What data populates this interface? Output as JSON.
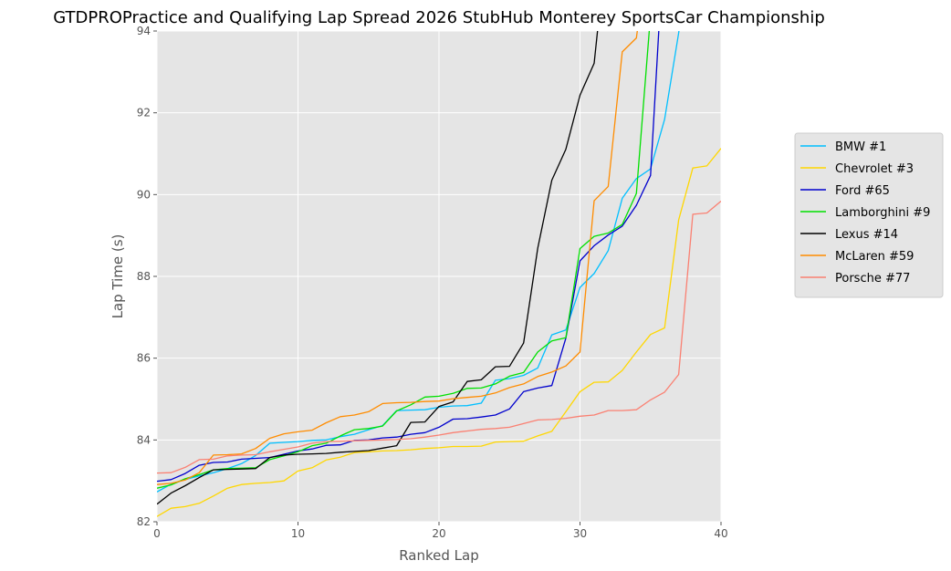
{
  "chart_data": {
    "type": "line",
    "title": "GTDPROPractice and Qualifying Lap Spread 2026 StubHub Monterey SportsCar Championship",
    "xlabel": "Ranked Lap",
    "ylabel": "Lap Time (s)",
    "xlim": [
      0,
      40
    ],
    "ylim": [
      82,
      94
    ],
    "xticks": [
      0,
      10,
      20,
      30,
      40
    ],
    "yticks": [
      82,
      84,
      86,
      88,
      90,
      92,
      94
    ],
    "grid": true,
    "legend_position": "right",
    "series": [
      {
        "name": "BMW #1",
        "color": "#00bfff",
        "x": [
          0,
          1,
          2,
          3,
          4,
          5,
          6,
          7,
          8,
          9,
          10,
          11,
          12,
          13,
          14,
          15,
          16,
          17,
          18,
          19,
          20,
          21,
          22,
          23,
          24,
          25,
          26,
          27,
          28,
          29,
          30,
          31,
          32,
          33,
          34,
          35,
          36,
          37,
          38
        ],
        "y": [
          82.73,
          82.92,
          83.03,
          83.12,
          83.2,
          83.3,
          83.42,
          83.62,
          83.92,
          83.94,
          83.96,
          83.99,
          84.0,
          84.08,
          84.14,
          84.25,
          84.35,
          84.72,
          84.73,
          84.74,
          84.8,
          84.83,
          84.84,
          84.9,
          85.46,
          85.5,
          85.58,
          85.76,
          86.57,
          86.69,
          87.73,
          88.07,
          88.63,
          89.91,
          90.39,
          90.63,
          91.84,
          93.95,
          96.5
        ]
      },
      {
        "name": "Chevrolet #3",
        "color": "#ffd700",
        "x": [
          0,
          1,
          2,
          3,
          4,
          5,
          6,
          7,
          8,
          9,
          10,
          11,
          12,
          13,
          14,
          15,
          16,
          17,
          18,
          19,
          20,
          21,
          22,
          23,
          24,
          25,
          26,
          27,
          28,
          29,
          30,
          31,
          32,
          33,
          34,
          35,
          36,
          37,
          38,
          39,
          40
        ],
        "y": [
          82.13,
          82.33,
          82.37,
          82.45,
          82.63,
          82.82,
          82.91,
          82.94,
          82.96,
          83.0,
          83.24,
          83.32,
          83.51,
          83.58,
          83.69,
          83.71,
          83.73,
          83.74,
          83.76,
          83.79,
          83.81,
          83.84,
          83.84,
          83.85,
          83.95,
          83.96,
          83.97,
          84.1,
          84.21,
          84.69,
          85.18,
          85.41,
          85.42,
          85.7,
          86.15,
          86.58,
          86.74,
          89.38,
          90.65,
          90.7,
          91.13
        ]
      },
      {
        "name": "Ford #65",
        "color": "#0000cd",
        "x": [
          0,
          1,
          2,
          3,
          4,
          5,
          6,
          7,
          8,
          9,
          10,
          11,
          12,
          13,
          14,
          15,
          16,
          17,
          18,
          19,
          20,
          21,
          22,
          23,
          24,
          25,
          26,
          27,
          28,
          29,
          30,
          31,
          32,
          33,
          34,
          35,
          36
        ],
        "y": [
          82.99,
          83.03,
          83.18,
          83.38,
          83.45,
          83.46,
          83.53,
          83.55,
          83.57,
          83.65,
          83.73,
          83.78,
          83.87,
          83.88,
          83.99,
          84.0,
          84.05,
          84.07,
          84.14,
          84.18,
          84.31,
          84.51,
          84.52,
          84.56,
          84.61,
          84.76,
          85.18,
          85.27,
          85.33,
          86.49,
          88.38,
          88.75,
          89.01,
          89.23,
          89.74,
          90.47,
          96.5
        ]
      },
      {
        "name": "Lamborghini #9",
        "color": "#00e000",
        "x": [
          0,
          1,
          2,
          3,
          4,
          5,
          6,
          7,
          8,
          9,
          10,
          11,
          12,
          13,
          14,
          15,
          16,
          17,
          18,
          19,
          20,
          21,
          22,
          23,
          24,
          25,
          26,
          27,
          28,
          29,
          30,
          31,
          32,
          33,
          34,
          35,
          36
        ],
        "y": [
          82.82,
          82.9,
          83.05,
          83.15,
          83.27,
          83.3,
          83.31,
          83.32,
          83.52,
          83.61,
          83.71,
          83.86,
          83.92,
          84.1,
          84.25,
          84.28,
          84.34,
          84.71,
          84.86,
          85.05,
          85.07,
          85.14,
          85.26,
          85.27,
          85.37,
          85.56,
          85.65,
          86.15,
          86.42,
          86.5,
          88.68,
          88.98,
          89.06,
          89.27,
          90.03,
          94.4,
          96.5
        ]
      },
      {
        "name": "Lexus #14",
        "color": "#000000",
        "x": [
          0,
          1,
          2,
          3,
          4,
          5,
          6,
          7,
          8,
          9,
          10,
          11,
          12,
          13,
          14,
          15,
          16,
          17,
          18,
          19,
          20,
          21,
          22,
          23,
          24,
          25,
          26,
          27,
          28,
          29,
          30,
          31,
          32
        ],
        "y": [
          82.43,
          82.7,
          82.88,
          83.08,
          83.27,
          83.28,
          83.29,
          83.3,
          83.57,
          83.63,
          83.65,
          83.66,
          83.67,
          83.7,
          83.72,
          83.74,
          83.8,
          83.86,
          84.43,
          84.44,
          84.82,
          84.93,
          85.43,
          85.47,
          85.79,
          85.8,
          86.37,
          88.69,
          90.35,
          91.11,
          92.43,
          93.21,
          96.5
        ]
      },
      {
        "name": "McLaren #59",
        "color": "#ff8c00",
        "x": [
          0,
          1,
          2,
          3,
          4,
          5,
          6,
          7,
          8,
          9,
          10,
          11,
          12,
          13,
          14,
          15,
          16,
          17,
          18,
          19,
          20,
          21,
          22,
          23,
          24,
          25,
          26,
          27,
          28,
          29,
          30,
          31,
          32,
          33,
          34,
          35
        ],
        "y": [
          82.91,
          82.94,
          83.02,
          83.2,
          83.63,
          83.64,
          83.66,
          83.79,
          84.04,
          84.15,
          84.2,
          84.24,
          84.42,
          84.57,
          84.61,
          84.69,
          84.89,
          84.91,
          84.92,
          84.94,
          84.95,
          85.01,
          85.04,
          85.07,
          85.15,
          85.28,
          85.37,
          85.55,
          85.66,
          85.81,
          86.15,
          89.85,
          90.2,
          93.49,
          93.83,
          96.5
        ]
      },
      {
        "name": "Porsche #77",
        "color": "#fa8072",
        "x": [
          0,
          1,
          2,
          3,
          4,
          5,
          6,
          7,
          8,
          9,
          10,
          11,
          12,
          13,
          14,
          15,
          16,
          17,
          18,
          19,
          20,
          21,
          22,
          23,
          24,
          25,
          26,
          27,
          28,
          29,
          30,
          31,
          32,
          33,
          34,
          35,
          36,
          37,
          38,
          39,
          40
        ],
        "y": [
          83.19,
          83.2,
          83.33,
          83.52,
          83.53,
          83.61,
          83.63,
          83.64,
          83.71,
          83.77,
          83.83,
          83.92,
          83.96,
          83.97,
          83.98,
          83.99,
          84.0,
          84.01,
          84.03,
          84.07,
          84.12,
          84.18,
          84.22,
          84.26,
          84.28,
          84.31,
          84.4,
          84.49,
          84.5,
          84.53,
          84.58,
          84.61,
          84.72,
          84.72,
          84.74,
          84.98,
          85.17,
          85.6,
          89.52,
          89.55,
          89.84
        ]
      }
    ]
  }
}
